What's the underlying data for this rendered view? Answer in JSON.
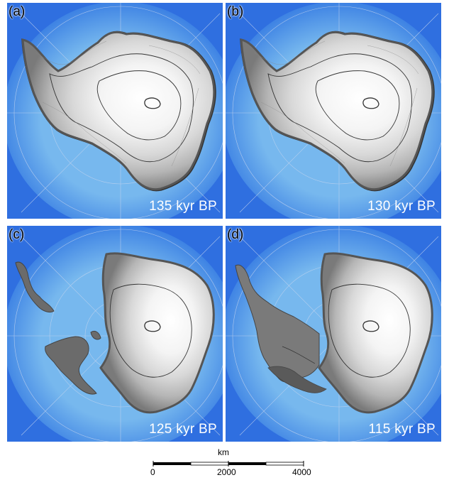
{
  "panels": [
    {
      "label": "(a)",
      "time": "135 kyr BP",
      "variant": "full"
    },
    {
      "label": "(b)",
      "time": "130 kyr BP",
      "variant": "full"
    },
    {
      "label": "(c)",
      "time": "125 kyr BP",
      "variant": "collapsed"
    },
    {
      "label": "(d)",
      "time": "115 kyr BP",
      "variant": "partial"
    }
  ],
  "scale_bar": {
    "unit": "km",
    "ticks": [
      "0",
      "2000",
      "4000"
    ]
  },
  "colors": {
    "ocean": "#2f6fe0",
    "shelf": "#5aa6e6",
    "ice_edge": "#6a6a6a",
    "ice_interior": "#ffffff",
    "contour": "#222222",
    "graticule": "#c8d6ee"
  }
}
